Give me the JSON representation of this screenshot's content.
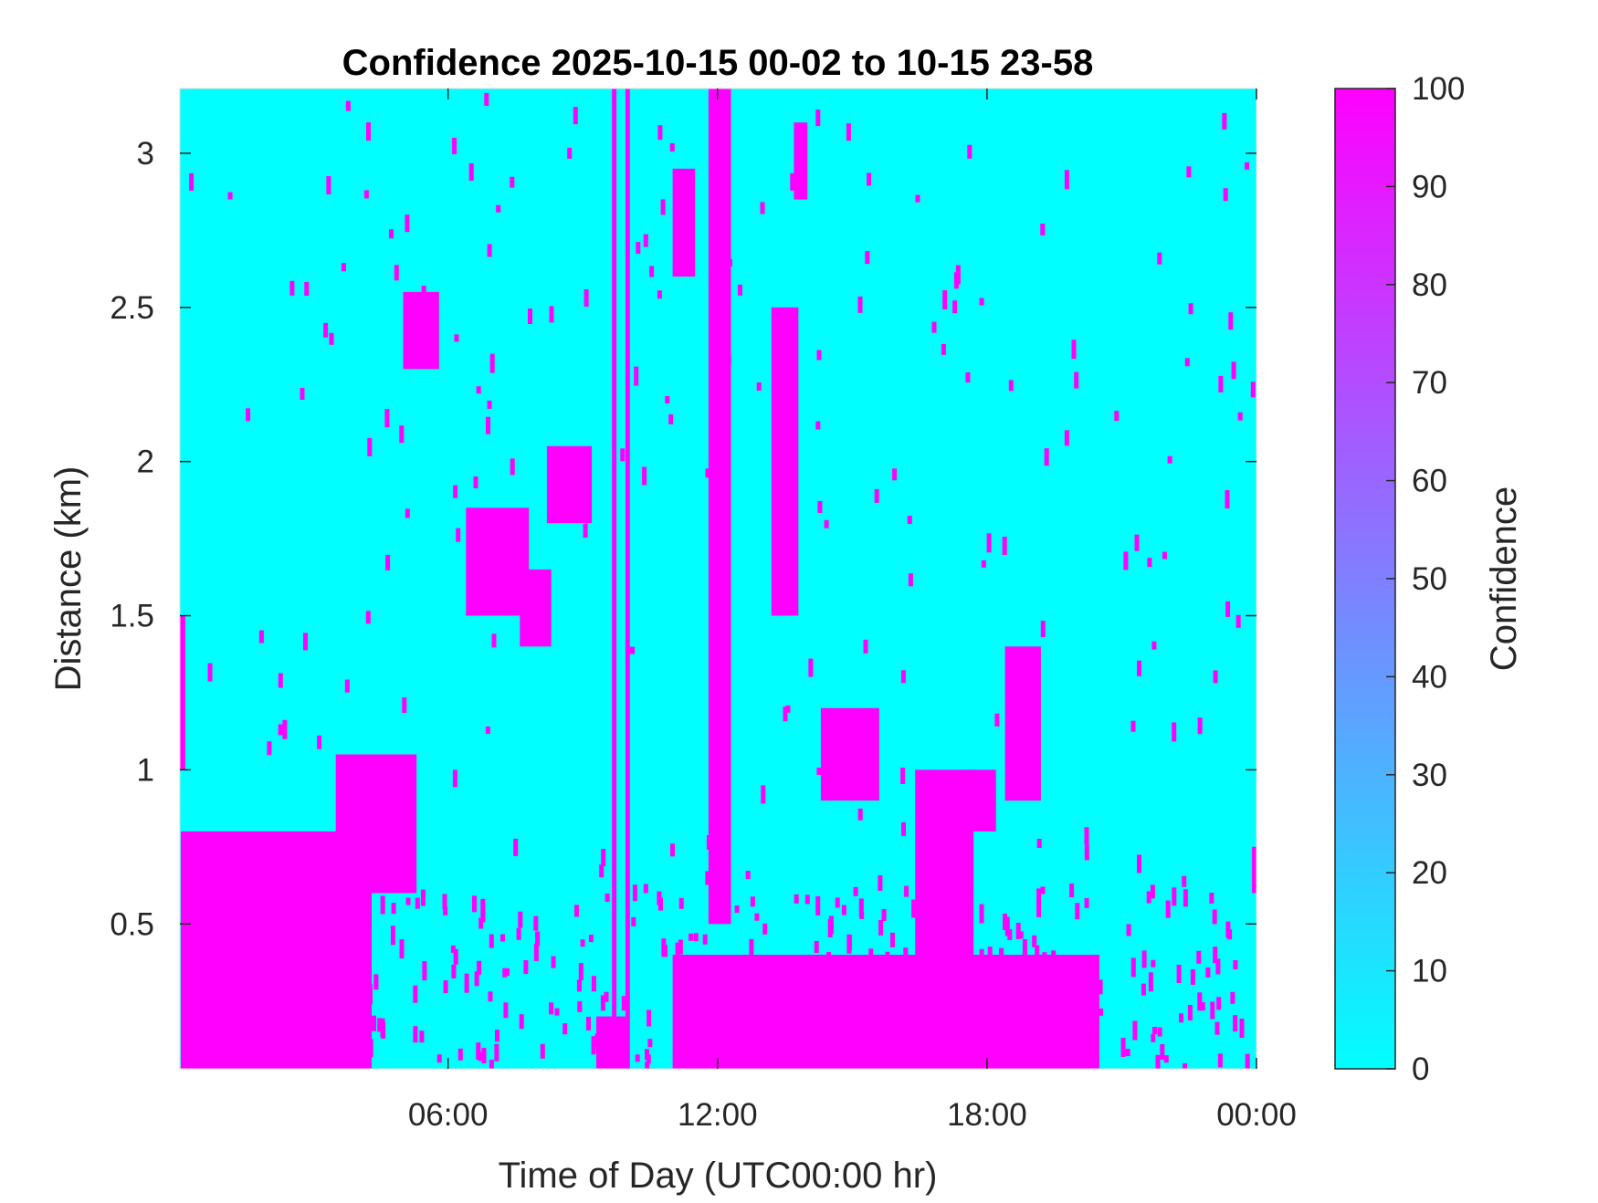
{
  "chart_data": {
    "type": "heatmap",
    "title": "Confidence 2025-10-15 00-02 to 10-15 23-58",
    "xlabel": "Time of Day (UTC00:00 hr)",
    "ylabel": "Distance (km)",
    "xlim_hours": [
      0.03,
      24
    ],
    "ylim_km": [
      0.03,
      3.21
    ],
    "x_ticks": [
      {
        "value": 6,
        "label": "06:00"
      },
      {
        "value": 12,
        "label": "12:00"
      },
      {
        "value": 18,
        "label": "18:00"
      },
      {
        "value": 24,
        "label": "00:00"
      }
    ],
    "y_ticks": [
      {
        "value": 0.5,
        "label": "0.5"
      },
      {
        "value": 1,
        "label": "1"
      },
      {
        "value": 1.5,
        "label": "1.5"
      },
      {
        "value": 2,
        "label": "2"
      },
      {
        "value": 2.5,
        "label": "2.5"
      },
      {
        "value": 3,
        "label": "3"
      }
    ],
    "colorbar": {
      "label": "Confidence",
      "range": [
        0,
        100
      ],
      "ticks": [
        "0",
        "10",
        "20",
        "30",
        "40",
        "50",
        "60",
        "70",
        "80",
        "90",
        "100"
      ],
      "colormap": "cool",
      "color_min": "#00ffff",
      "color_max": "#ff00ff"
    },
    "background_value": 0,
    "high_value": 100,
    "high_confidence_regions": [
      {
        "t": [
          0.05,
          4.3
        ],
        "d": [
          0.03,
          0.8
        ]
      },
      {
        "t": [
          1.5,
          4.3
        ],
        "d": [
          0.03,
          0.45
        ]
      },
      {
        "t": [
          3.5,
          5.3
        ],
        "d": [
          0.6,
          1.05
        ]
      },
      {
        "t": [
          0.03,
          0.15
        ],
        "d": [
          1.0,
          1.5
        ]
      },
      {
        "t": [
          5.0,
          5.8
        ],
        "d": [
          2.3,
          2.55
        ]
      },
      {
        "t": [
          6.4,
          7.8
        ],
        "d": [
          1.5,
          1.85
        ]
      },
      {
        "t": [
          7.6,
          8.3
        ],
        "d": [
          1.4,
          1.65
        ]
      },
      {
        "t": [
          8.2,
          9.2
        ],
        "d": [
          1.8,
          2.05
        ]
      },
      {
        "t": [
          9.3,
          10.0
        ],
        "d": [
          0.03,
          0.2
        ]
      },
      {
        "t": [
          9.65,
          9.75
        ],
        "d": [
          0.03,
          3.21
        ]
      },
      {
        "t": [
          9.95,
          10.05
        ],
        "d": [
          0.03,
          3.21
        ]
      },
      {
        "t": [
          11.0,
          11.5
        ],
        "d": [
          2.6,
          2.95
        ]
      },
      {
        "t": [
          11.8,
          12.3
        ],
        "d": [
          0.5,
          3.21
        ]
      },
      {
        "t": [
          13.2,
          13.8
        ],
        "d": [
          1.5,
          2.5
        ]
      },
      {
        "t": [
          13.7,
          14.0
        ],
        "d": [
          2.85,
          3.1
        ]
      },
      {
        "t": [
          14.3,
          15.6
        ],
        "d": [
          0.9,
          1.2
        ]
      },
      {
        "t": [
          16.4,
          17.7
        ],
        "d": [
          0.4,
          1.0
        ]
      },
      {
        "t": [
          17.5,
          18.2
        ],
        "d": [
          0.8,
          1.0
        ]
      },
      {
        "t": [
          18.4,
          19.2
        ],
        "d": [
          0.9,
          1.4
        ]
      },
      {
        "t": [
          11.0,
          20.5
        ],
        "d": [
          0.03,
          0.4
        ]
      },
      {
        "t": [
          23.9,
          24.0
        ],
        "d": [
          0.6,
          0.75
        ]
      }
    ]
  }
}
